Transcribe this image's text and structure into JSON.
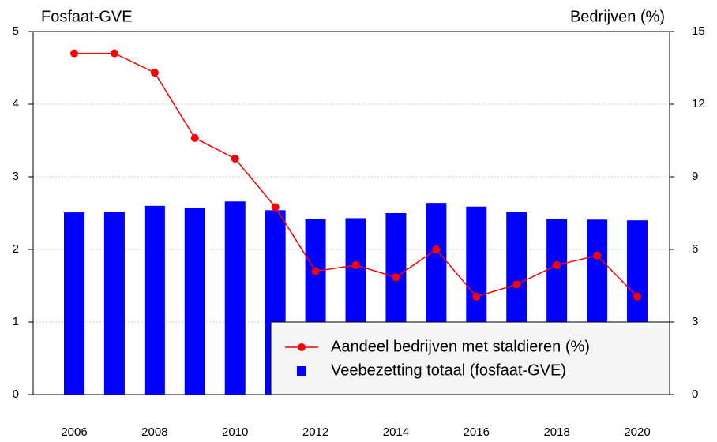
{
  "chart_data": {
    "type": "bar-line",
    "y_title": "Fosfaat-GVE",
    "y2_title": "Bedrijven (%)",
    "categories": [
      "2006",
      null,
      "2008",
      null,
      "2010",
      null,
      "2012",
      null,
      "2014",
      null,
      "2016",
      null,
      "2018",
      null,
      "2020"
    ],
    "series": [
      {
        "name": "Aandeel bedrijven met staldieren (%)",
        "type": "line",
        "axis": "y2",
        "color": "#ff0000",
        "values": [
          14.1,
          14.1,
          13.3,
          10.6,
          9.75,
          7.75,
          5.1,
          5.35,
          4.85,
          6.0,
          4.05,
          4.55,
          5.35,
          5.75,
          4.05
        ]
      },
      {
        "name": "Veebezetting totaal (fosfaat-GVE)",
        "type": "bar",
        "axis": "y",
        "color": "#0000ff",
        "values": [
          2.51,
          2.52,
          2.6,
          2.57,
          2.66,
          2.54,
          2.42,
          2.43,
          2.5,
          2.64,
          2.59,
          2.52,
          2.42,
          2.41,
          2.4
        ]
      }
    ],
    "ylim": [
      0,
      5
    ],
    "yticks": [
      0,
      1,
      2,
      3,
      4,
      5
    ],
    "y2lim": [
      0,
      15
    ],
    "y2ticks": [
      0,
      3,
      6,
      9,
      12,
      15
    ],
    "grid": true,
    "legend": "bottom-right"
  }
}
